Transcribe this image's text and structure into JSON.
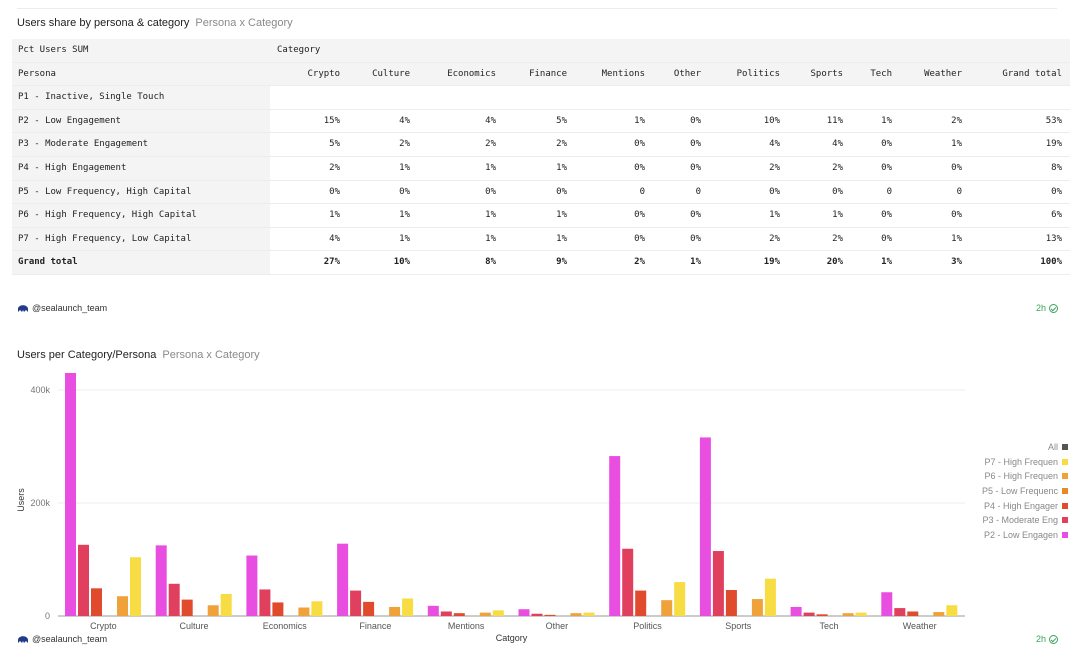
{
  "table_panel": {
    "title": "Users share by persona & category",
    "subtitle": "Persona x Category",
    "corner_label": "Pct Users SUM",
    "column_group_label": "Category",
    "row_header_label": "Persona",
    "columns": [
      "Crypto",
      "Culture",
      "Economics",
      "Finance",
      "Mentions",
      "Other",
      "Politics",
      "Sports",
      "Tech",
      "Weather",
      "Grand total"
    ],
    "rows": [
      {
        "label": "P1 - Inactive, Single Touch",
        "values": [
          "",
          "",
          "",
          "",
          "",
          "",
          "",
          "",
          "",
          "",
          ""
        ]
      },
      {
        "label": "P2 - Low Engagement",
        "values": [
          "15%",
          "4%",
          "4%",
          "5%",
          "1%",
          "0%",
          "10%",
          "11%",
          "1%",
          "2%",
          "53%"
        ]
      },
      {
        "label": "P3 - Moderate Engagement",
        "values": [
          "5%",
          "2%",
          "2%",
          "2%",
          "0%",
          "0%",
          "4%",
          "4%",
          "0%",
          "1%",
          "19%"
        ]
      },
      {
        "label": "P4 - High Engagement",
        "values": [
          "2%",
          "1%",
          "1%",
          "1%",
          "0%",
          "0%",
          "2%",
          "2%",
          "0%",
          "0%",
          "8%"
        ]
      },
      {
        "label": "P5 - Low Frequency, High Capital",
        "values": [
          "0%",
          "0%",
          "0%",
          "0%",
          "0",
          "0",
          "0%",
          "0%",
          "0",
          "0",
          "0%"
        ]
      },
      {
        "label": "P6 - High Frequency, High Capital",
        "values": [
          "1%",
          "1%",
          "1%",
          "1%",
          "0%",
          "0%",
          "1%",
          "1%",
          "0%",
          "0%",
          "6%"
        ]
      },
      {
        "label": "P7 - High Frequency, Low Capital",
        "values": [
          "4%",
          "1%",
          "1%",
          "1%",
          "0%",
          "0%",
          "2%",
          "2%",
          "0%",
          "1%",
          "13%"
        ]
      },
      {
        "label": "Grand total",
        "values": [
          "27%",
          "10%",
          "8%",
          "9%",
          "2%",
          "1%",
          "19%",
          "20%",
          "1%",
          "3%",
          "100%"
        ]
      }
    ],
    "footer_user": "@sealaunch_team",
    "age": "2h"
  },
  "chart_panel": {
    "title": "Users per Category/Persona",
    "subtitle": "Persona x Category",
    "footer_user": "@sealaunch_team",
    "age": "2h"
  },
  "chart_data": {
    "type": "bar",
    "xlabel": "Catgory",
    "ylabel": "Users",
    "ylim": [
      0,
      430000
    ],
    "yticks": [
      0,
      200000,
      400000
    ],
    "ytick_labels": [
      "0",
      "200k",
      "400k"
    ],
    "grid": true,
    "legend_position": "right",
    "categories": [
      "Crypto",
      "Culture",
      "Economics",
      "Finance",
      "Mentions",
      "Other",
      "Politics",
      "Sports",
      "Tech",
      "Weather"
    ],
    "series": [
      {
        "name": "P2 - Low Engagen",
        "color": "#e84ee0",
        "values": [
          430000,
          125000,
          107000,
          128000,
          18000,
          12000,
          283000,
          316000,
          16000,
          42000
        ]
      },
      {
        "name": "P3 - Moderate Eng",
        "color": "#e0405e",
        "values": [
          126000,
          57000,
          47000,
          45000,
          8000,
          4000,
          119000,
          115000,
          6000,
          14000
        ]
      },
      {
        "name": "P4 - High Engager",
        "color": "#e04b2e",
        "values": [
          49000,
          29000,
          24000,
          25000,
          5000,
          2000,
          45000,
          46000,
          3000,
          8000
        ]
      },
      {
        "name": "P5 - Low Frequenc",
        "color": "#e8882c",
        "values": [
          0,
          0,
          0,
          0,
          0,
          0,
          0,
          0,
          0,
          0
        ]
      },
      {
        "name": "P6 - High Frequen",
        "color": "#f0a23a",
        "values": [
          35000,
          19000,
          15000,
          16000,
          6000,
          5000,
          28000,
          30000,
          5000,
          7000
        ]
      },
      {
        "name": "P7 - High Frequen",
        "color": "#f7dc43",
        "values": [
          104000,
          39000,
          26000,
          31000,
          10000,
          6000,
          60000,
          66000,
          6000,
          19000
        ]
      }
    ],
    "legend": [
      {
        "label": "All",
        "color": "#555555"
      },
      {
        "label": "P7 - High Frequen",
        "color": "#f7dc43"
      },
      {
        "label": "P6 - High Frequen",
        "color": "#f0a23a"
      },
      {
        "label": "P5 - Low Frequenc",
        "color": "#e8882c"
      },
      {
        "label": "P4 - High Engager",
        "color": "#e04b2e"
      },
      {
        "label": "P3 - Moderate Eng",
        "color": "#e0405e"
      },
      {
        "label": "P2 - Low Engagen",
        "color": "#e84ee0"
      }
    ]
  }
}
